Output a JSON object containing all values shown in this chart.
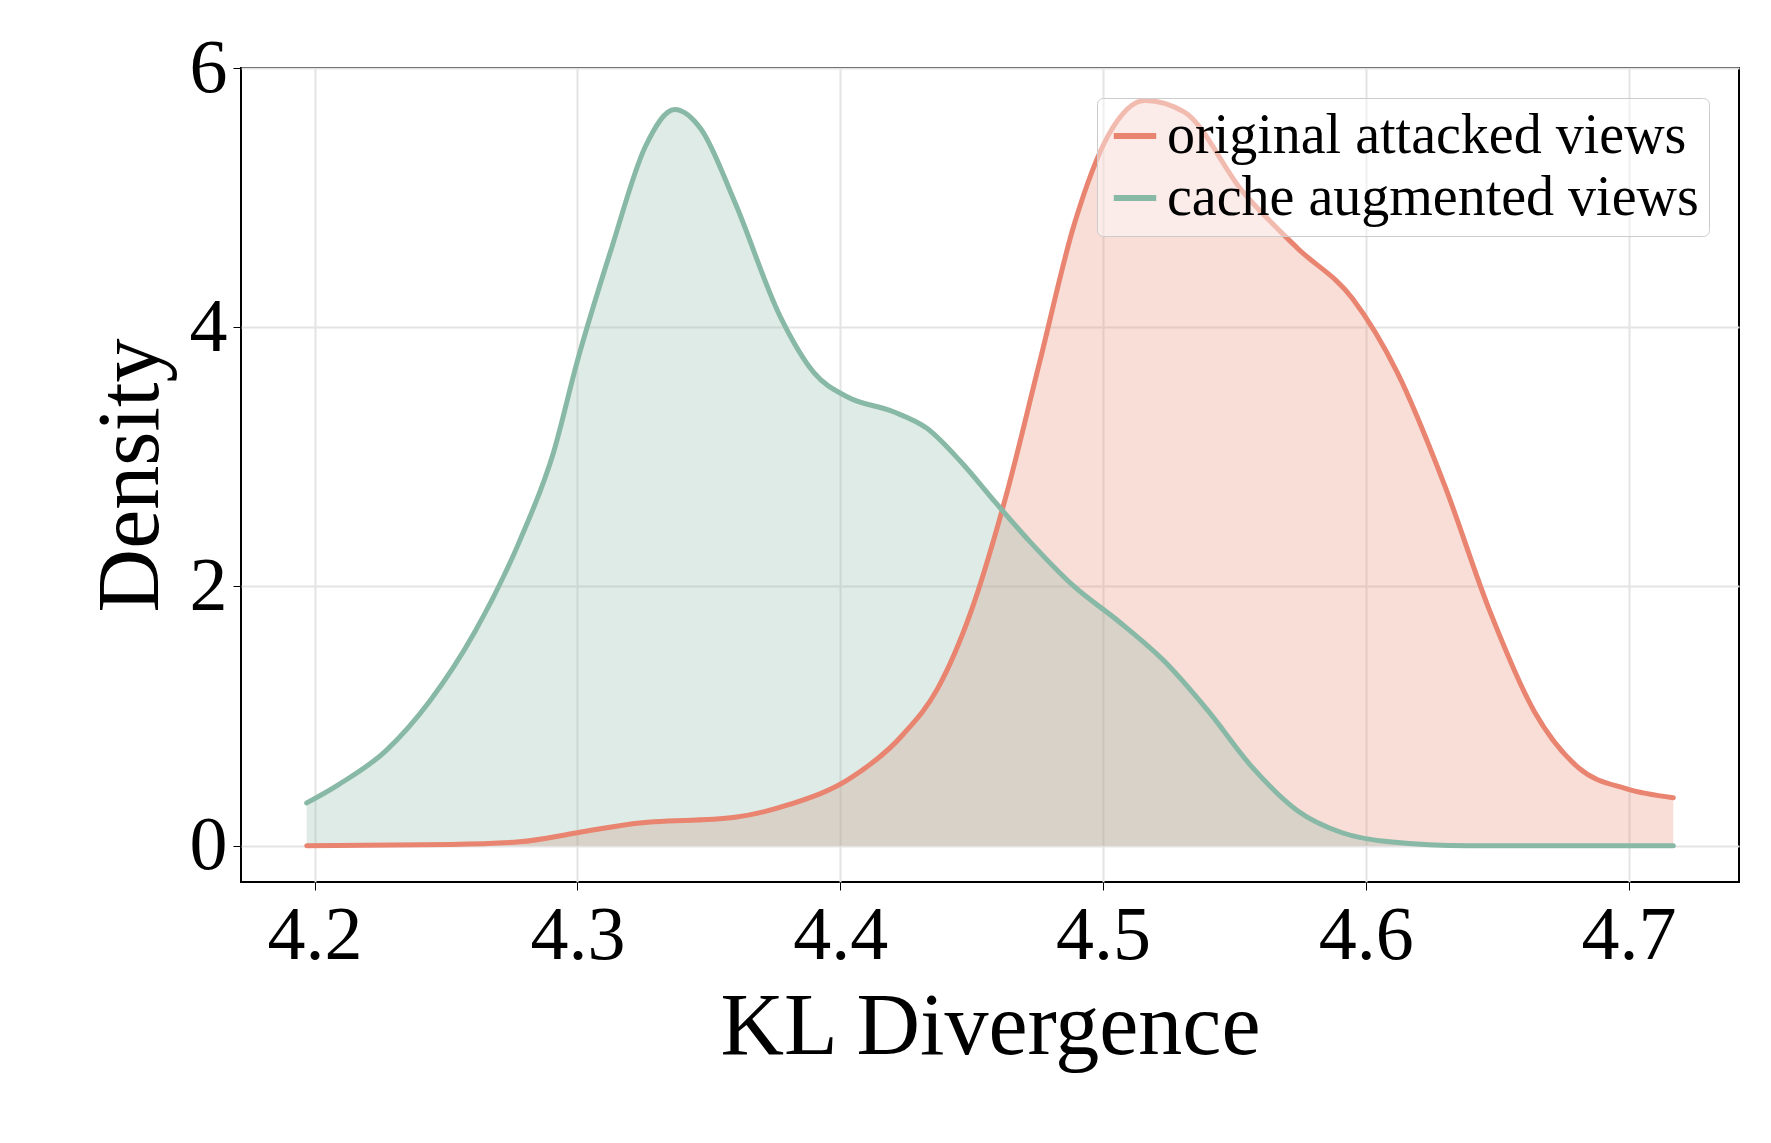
{
  "chart_data": {
    "type": "area",
    "xlabel": "KL Divergence",
    "ylabel": "Density",
    "xlim": [
      4.172,
      4.742
    ],
    "ylim": [
      -0.28,
      6.0
    ],
    "xticks": [
      4.2,
      4.3,
      4.4,
      4.5,
      4.6,
      4.7
    ],
    "yticks": [
      0,
      2,
      4,
      6
    ],
    "grid": true,
    "legend": "top right",
    "series": [
      {
        "name": "original attacked views",
        "color": "#e8846f",
        "x": [
          4.197,
          4.252,
          4.278,
          4.3,
          4.321,
          4.36,
          4.381,
          4.403,
          4.424,
          4.437,
          4.45,
          4.463,
          4.476,
          4.489,
          4.502,
          4.516,
          4.531,
          4.553,
          4.574,
          4.595,
          4.612,
          4.63,
          4.647,
          4.664,
          4.681,
          4.699,
          4.717
        ],
        "values": [
          0,
          0.01,
          0.03,
          0.1,
          0.17,
          0.22,
          0.32,
          0.51,
          0.86,
          1.21,
          1.82,
          2.69,
          3.74,
          4.79,
          5.48,
          5.75,
          5.66,
          5.05,
          4.61,
          4.22,
          3.65,
          2.78,
          1.82,
          1.04,
          0.6,
          0.44,
          0.37
        ]
      },
      {
        "name": "cache augmented views",
        "color": "#88b8a6",
        "x": [
          4.197,
          4.209,
          4.227,
          4.244,
          4.261,
          4.278,
          4.291,
          4.3,
          4.313,
          4.326,
          4.337,
          4.347,
          4.36,
          4.377,
          4.39,
          4.403,
          4.42,
          4.433,
          4.446,
          4.459,
          4.472,
          4.489,
          4.506,
          4.523,
          4.54,
          4.557,
          4.574,
          4.591,
          4.609,
          4.639,
          4.717
        ],
        "values": [
          0.33,
          0.47,
          0.73,
          1.12,
          1.65,
          2.35,
          3.04,
          3.74,
          4.61,
          5.4,
          5.68,
          5.53,
          4.96,
          4.09,
          3.65,
          3.46,
          3.35,
          3.22,
          2.96,
          2.65,
          2.35,
          2.0,
          1.73,
          1.43,
          1.04,
          0.6,
          0.27,
          0.1,
          0.03,
          0,
          0
        ]
      }
    ]
  }
}
